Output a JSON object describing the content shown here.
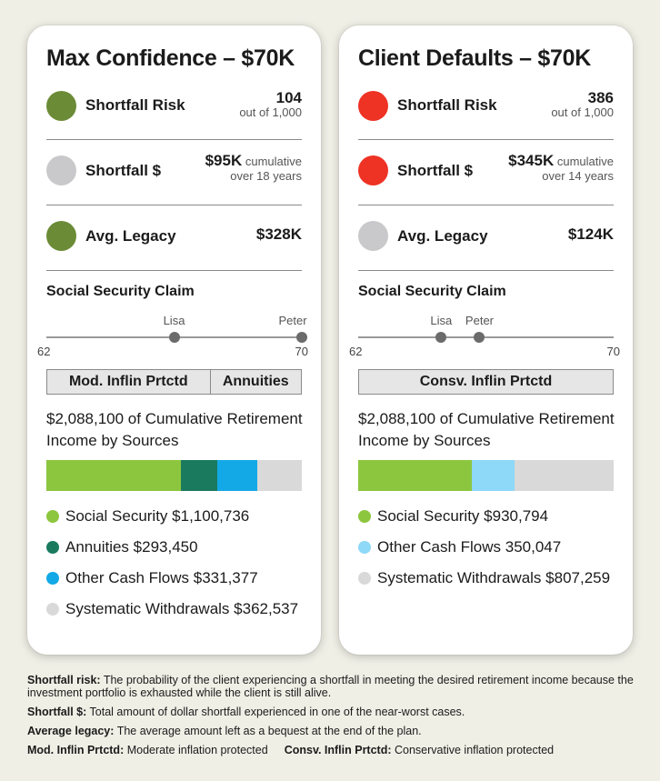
{
  "colors": {
    "green": "#6b8b36",
    "gray": "#c9c9cb",
    "red": "#ee3224",
    "ss": "#8cc63f",
    "annuities": "#1a7a5e",
    "other": "#13a9e6",
    "other_right": "#8ed8f8",
    "systematic": "#d9d9d9"
  },
  "left": {
    "title": "Max Confidence – $70K",
    "metrics": [
      {
        "label": "Shortfall Risk",
        "value": "104",
        "note": "out of 1,000",
        "color": "#6b8b36"
      },
      {
        "label": "Shortfall $",
        "value": "$95K",
        "note": "cumulative",
        "note2": "over 18 years",
        "color": "#c9c9cb"
      },
      {
        "label": "Avg. Legacy",
        "value": "$328K",
        "color": "#6b8b36"
      }
    ],
    "ss_title": "Social Security Claim",
    "claim": {
      "min": "62",
      "max": "70",
      "lo": 62,
      "hi": 70,
      "people": [
        {
          "name": "Lisa",
          "age": 66
        },
        {
          "name": "Peter",
          "age": 70
        }
      ]
    },
    "strategy": [
      "Mod. Inflin Prtctd",
      "Annuities"
    ],
    "income_title": "$2,088,100 of Cumulative Retirement Income by Sources",
    "sources": [
      {
        "label": "Social Security $1,100,736",
        "amount": 1100736,
        "color": "#8cc63f"
      },
      {
        "label": "Annuities $293,450",
        "amount": 293450,
        "color": "#1a7a5e"
      },
      {
        "label": "Other Cash Flows $331,377",
        "amount": 331377,
        "color": "#13a9e6"
      },
      {
        "label": "Systematic Withdrawals $362,537",
        "amount": 362537,
        "color": "#d9d9d9"
      }
    ]
  },
  "right": {
    "title": "Client Defaults – $70K",
    "metrics": [
      {
        "label": "Shortfall Risk",
        "value": "386",
        "note": "out of 1,000",
        "color": "#ee3224"
      },
      {
        "label": "Shortfall $",
        "value": "$345K",
        "note": "cumulative",
        "note2": "over 14 years",
        "color": "#ee3224"
      },
      {
        "label": "Avg. Legacy",
        "value": "$124K",
        "color": "#c9c9cb"
      }
    ],
    "ss_title": "Social Security Claim",
    "claim": {
      "min": "62",
      "max": "70",
      "lo": 62,
      "hi": 70,
      "people": [
        {
          "name": "Lisa",
          "age": 64.6
        },
        {
          "name": "Peter",
          "age": 65.8
        }
      ]
    },
    "strategy": [
      "Consv. Inflin Prtctd"
    ],
    "income_title": "$2,088,100 of Cumulative Retirement Income by Sources",
    "sources": [
      {
        "label": "Social Security $930,794",
        "amount": 930794,
        "color": "#8cc63f"
      },
      {
        "label": "Other Cash Flows 350,047",
        "amount": 350047,
        "color": "#8ed8f8"
      },
      {
        "label": "Systematic Withdrawals $807,259",
        "amount": 807259,
        "color": "#d9d9d9"
      }
    ]
  },
  "footnotes": [
    {
      "term": "Shortfall risk:",
      "text": "The probability of the client experiencing a shortfall in meeting the desired retirement income because the investment portfolio is exhausted while the client is still alive."
    },
    {
      "term": "Shortfall $:",
      "text": "Total amount of dollar shortfall experienced in one of the near-worst cases."
    },
    {
      "term": "Average legacy:",
      "text": "The average amount left as a bequest at the end of the plan."
    },
    {
      "term": "Mod. Inflin Prtctd:",
      "text": "Moderate inflation protected"
    },
    {
      "term": "Consv. Inflin Prtctd:",
      "text": "Conservative inflation protected"
    }
  ]
}
